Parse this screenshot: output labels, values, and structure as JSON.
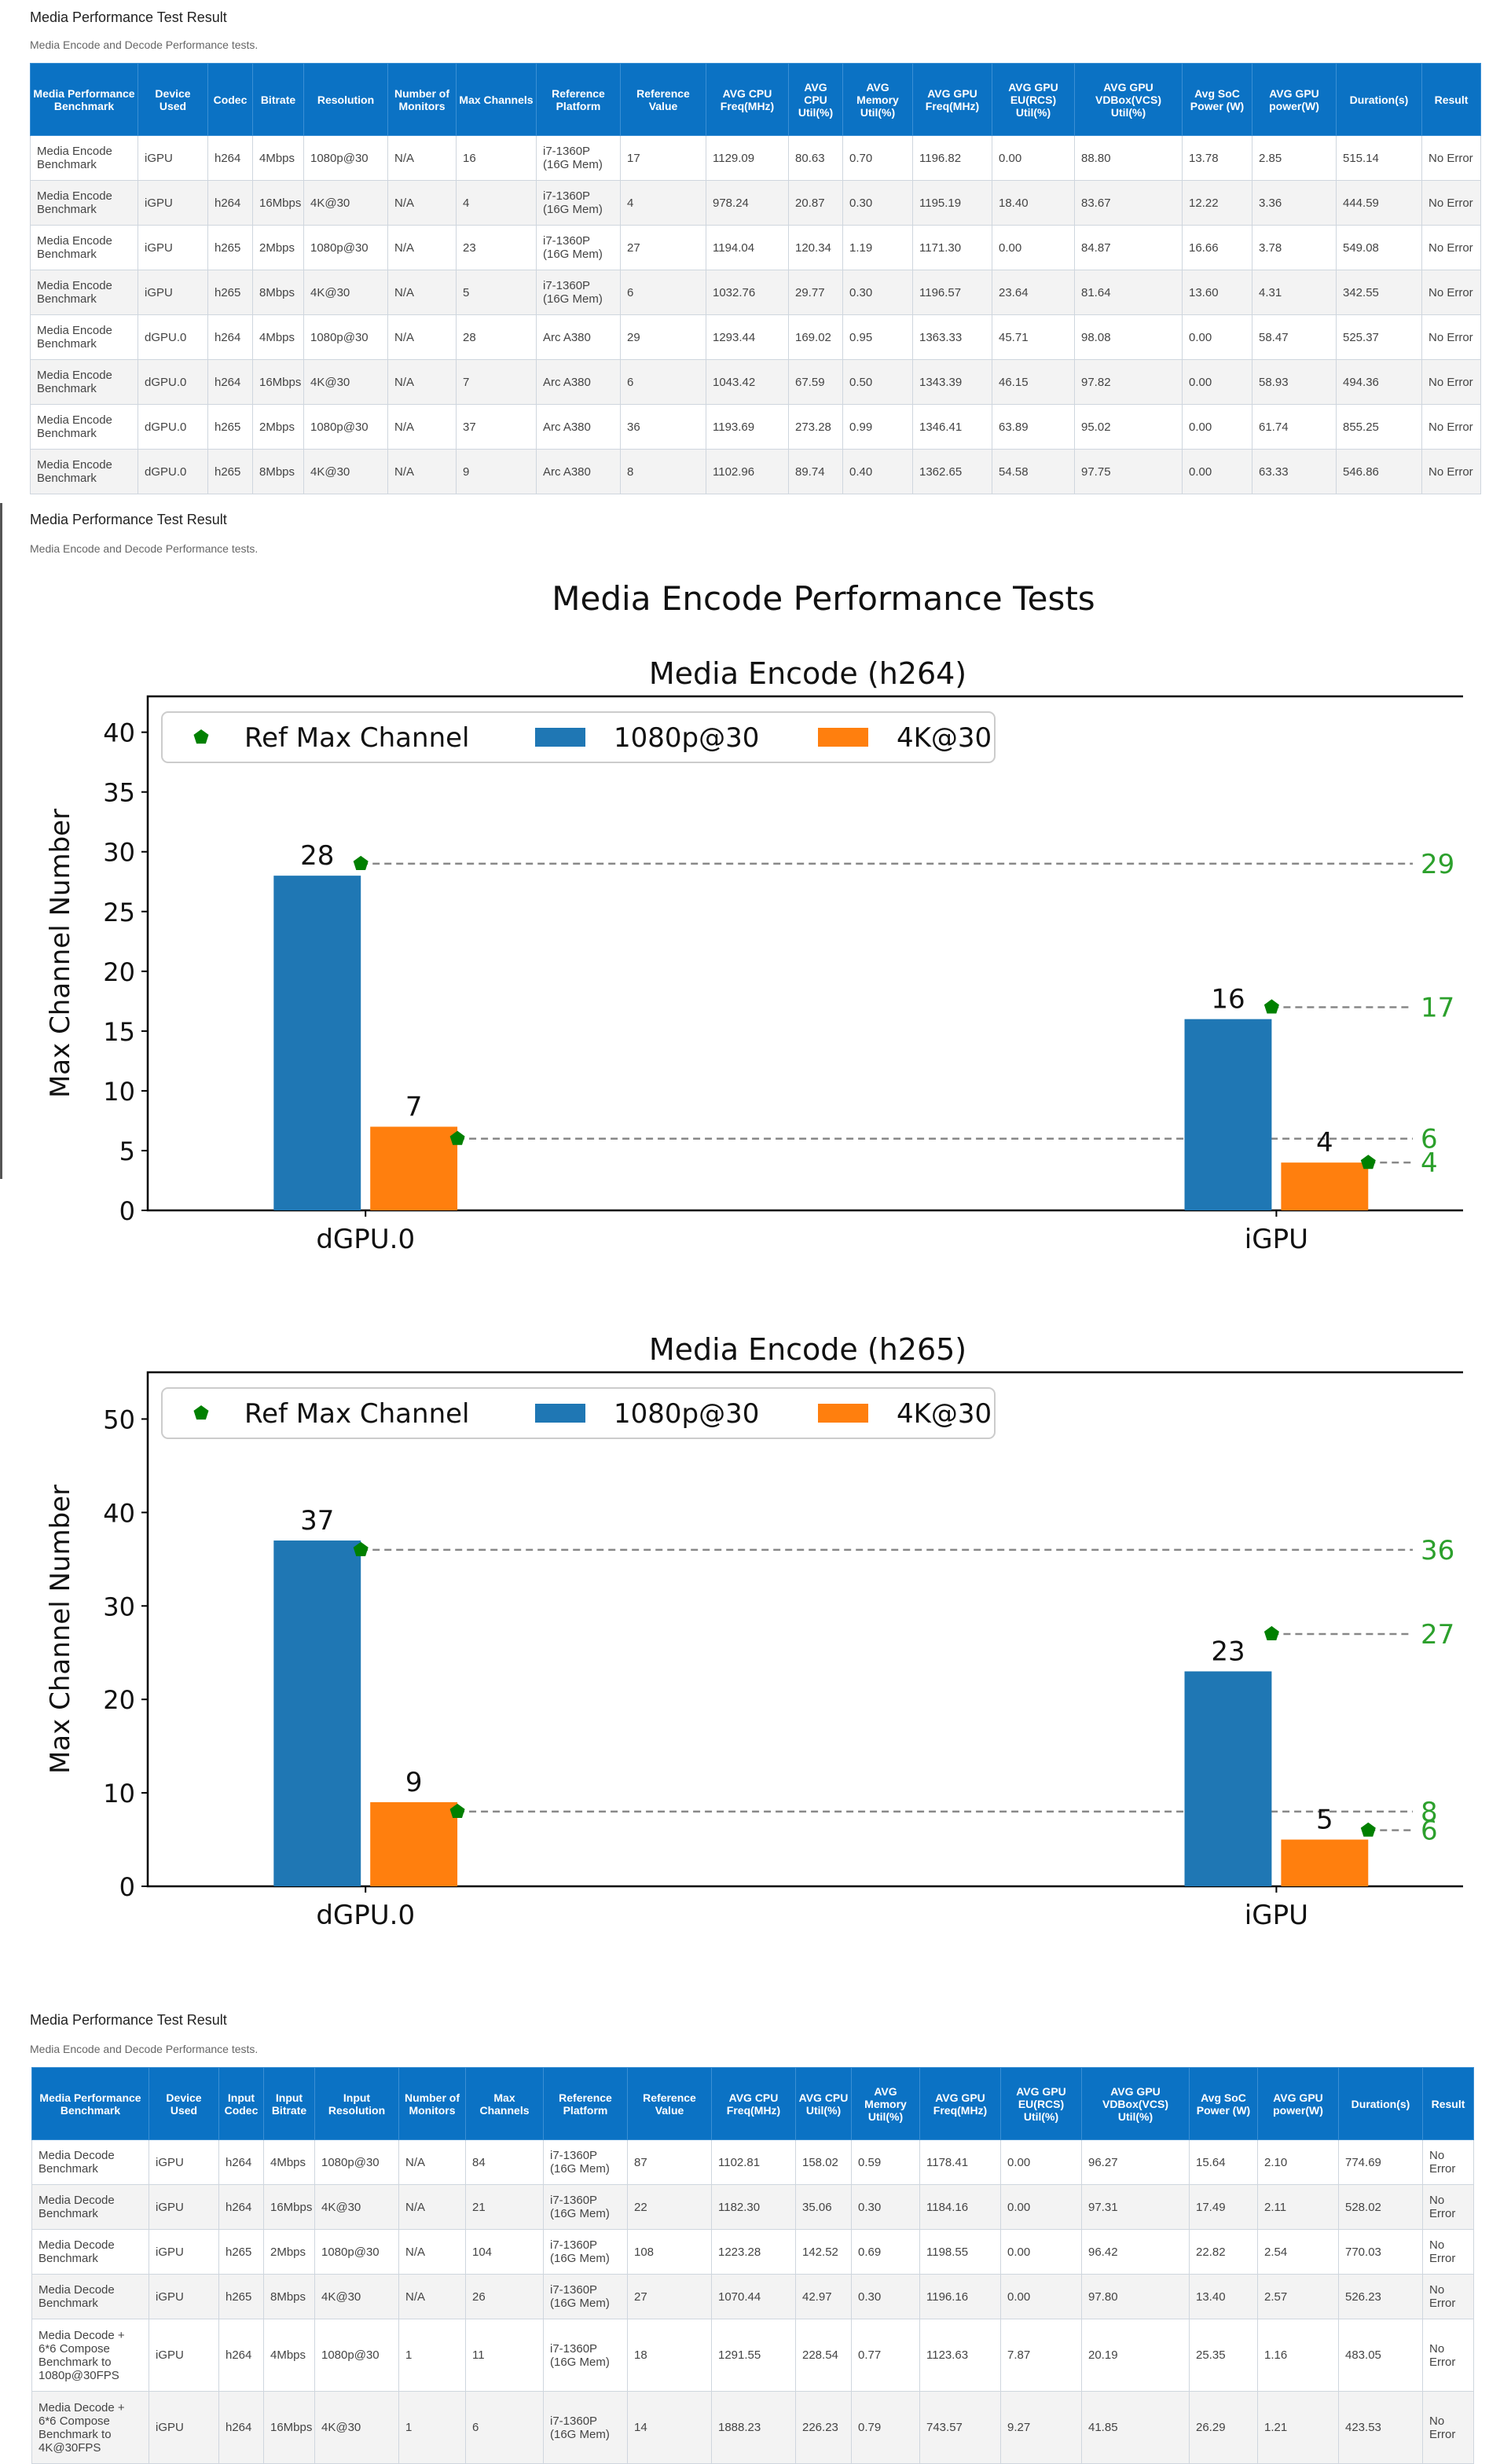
{
  "section1": {
    "title": "Media Performance Test Result",
    "description": "Media Encode and Decode Performance tests.",
    "columns": [
      "Media Performance Benchmark",
      "Device Used",
      "Codec",
      "Bitrate",
      "Resolution",
      "Number of Monitors",
      "Max Channels",
      "Reference Platform",
      "Reference Value",
      "AVG CPU Freq(MHz)",
      "AVG CPU Util(%)",
      "AVG Memory Util(%)",
      "AVG GPU Freq(MHz)",
      "AVG GPU EU(RCS) Util(%)",
      "AVG GPU VDBox(VCS) Util(%)",
      "Avg SoC Power (W)",
      "AVG GPU power(W)",
      "Duration(s)",
      "Result"
    ],
    "rows": [
      [
        "Media Encode Benchmark",
        "iGPU",
        "h264",
        "4Mbps",
        "1080p@30",
        "N/A",
        "16",
        "i7-1360P (16G Mem)",
        "17",
        "1129.09",
        "80.63",
        "0.70",
        "1196.82",
        "0.00",
        "88.80",
        "13.78",
        "2.85",
        "515.14",
        "No Error"
      ],
      [
        "Media Encode Benchmark",
        "iGPU",
        "h264",
        "16Mbps",
        "4K@30",
        "N/A",
        "4",
        "i7-1360P (16G Mem)",
        "4",
        "978.24",
        "20.87",
        "0.30",
        "1195.19",
        "18.40",
        "83.67",
        "12.22",
        "3.36",
        "444.59",
        "No Error"
      ],
      [
        "Media Encode Benchmark",
        "iGPU",
        "h265",
        "2Mbps",
        "1080p@30",
        "N/A",
        "23",
        "i7-1360P (16G Mem)",
        "27",
        "1194.04",
        "120.34",
        "1.19",
        "1171.30",
        "0.00",
        "84.87",
        "16.66",
        "3.78",
        "549.08",
        "No Error"
      ],
      [
        "Media Encode Benchmark",
        "iGPU",
        "h265",
        "8Mbps",
        "4K@30",
        "N/A",
        "5",
        "i7-1360P (16G Mem)",
        "6",
        "1032.76",
        "29.77",
        "0.30",
        "1196.57",
        "23.64",
        "81.64",
        "13.60",
        "4.31",
        "342.55",
        "No Error"
      ],
      [
        "Media Encode Benchmark",
        "dGPU.0",
        "h264",
        "4Mbps",
        "1080p@30",
        "N/A",
        "28",
        "Arc A380",
        "29",
        "1293.44",
        "169.02",
        "0.95",
        "1363.33",
        "45.71",
        "98.08",
        "0.00",
        "58.47",
        "525.37",
        "No Error"
      ],
      [
        "Media Encode Benchmark",
        "dGPU.0",
        "h264",
        "16Mbps",
        "4K@30",
        "N/A",
        "7",
        "Arc A380",
        "6",
        "1043.42",
        "67.59",
        "0.50",
        "1343.39",
        "46.15",
        "97.82",
        "0.00",
        "58.93",
        "494.36",
        "No Error"
      ],
      [
        "Media Encode Benchmark",
        "dGPU.0",
        "h265",
        "2Mbps",
        "1080p@30",
        "N/A",
        "37",
        "Arc A380",
        "36",
        "1193.69",
        "273.28",
        "0.99",
        "1346.41",
        "63.89",
        "95.02",
        "0.00",
        "61.74",
        "855.25",
        "No Error"
      ],
      [
        "Media Encode Benchmark",
        "dGPU.0",
        "h265",
        "8Mbps",
        "4K@30",
        "N/A",
        "9",
        "Arc A380",
        "8",
        "1102.96",
        "89.74",
        "0.40",
        "1362.65",
        "54.58",
        "97.75",
        "0.00",
        "63.33",
        "546.86",
        "No Error"
      ]
    ]
  },
  "section2": {
    "title": "Media Performance Test Result",
    "description": "Media Encode and Decode Performance tests."
  },
  "chart_data": [
    {
      "type": "bar",
      "title": "Media Encode Performance Tests",
      "subtitle": "Media Encode (h264)",
      "ylabel": "Max Channel Number",
      "categories": [
        "dGPU.0",
        "iGPU"
      ],
      "ylim": [
        0,
        43
      ],
      "yticks": [
        0,
        5,
        10,
        15,
        20,
        25,
        30,
        35,
        40
      ],
      "legend": [
        "Ref Max Channel",
        "1080p@30",
        "4K@30"
      ],
      "legend_position": "top-left",
      "series": [
        {
          "name": "1080p@30",
          "values": [
            28,
            16
          ],
          "color": "#1f77b4"
        },
        {
          "name": "4K@30",
          "values": [
            7,
            4
          ],
          "color": "#ff7f0e"
        }
      ],
      "reference": {
        "name": "Ref Max Channel",
        "values_1080p": [
          29,
          17
        ],
        "values_4k": [
          6,
          4
        ],
        "color": "#008000"
      }
    },
    {
      "type": "bar",
      "subtitle": "Media Encode (h265)",
      "ylabel": "Max Channel Number",
      "categories": [
        "dGPU.0",
        "iGPU"
      ],
      "ylim": [
        0,
        55
      ],
      "yticks": [
        0,
        10,
        20,
        30,
        40,
        50
      ],
      "legend": [
        "Ref Max Channel",
        "1080p@30",
        "4K@30"
      ],
      "legend_position": "top-left",
      "series": [
        {
          "name": "1080p@30",
          "values": [
            37,
            23
          ],
          "color": "#1f77b4"
        },
        {
          "name": "4K@30",
          "values": [
            9,
            5
          ],
          "color": "#ff7f0e"
        }
      ],
      "reference": {
        "name": "Ref Max Channel",
        "values_1080p": [
          36,
          27
        ],
        "values_4k": [
          8,
          6
        ],
        "color": "#008000"
      }
    }
  ],
  "section3": {
    "title": "Media Performance Test Result",
    "description": "Media Encode and Decode Performance tests.",
    "columns": [
      "Media Performance Benchmark",
      "Device Used",
      "Input Codec",
      "Input Bitrate",
      "Input Resolution",
      "Number of Monitors",
      "Max Channels",
      "Reference Platform",
      "Reference Value",
      "AVG CPU Freq(MHz)",
      "AVG CPU Util(%)",
      "AVG Memory Util(%)",
      "AVG GPU Freq(MHz)",
      "AVG GPU EU(RCS) Util(%)",
      "AVG GPU VDBox(VCS) Util(%)",
      "Avg SoC Power (W)",
      "AVG GPU power(W)",
      "Duration(s)",
      "Result"
    ],
    "rows": [
      [
        "Media Decode Benchmark",
        "iGPU",
        "h264",
        "4Mbps",
        "1080p@30",
        "N/A",
        "84",
        "i7-1360P (16G Mem)",
        "87",
        "1102.81",
        "158.02",
        "0.59",
        "1178.41",
        "0.00",
        "96.27",
        "15.64",
        "2.10",
        "774.69",
        "No Error"
      ],
      [
        "Media Decode Benchmark",
        "iGPU",
        "h264",
        "16Mbps",
        "4K@30",
        "N/A",
        "21",
        "i7-1360P (16G Mem)",
        "22",
        "1182.30",
        "35.06",
        "0.30",
        "1184.16",
        "0.00",
        "97.31",
        "17.49",
        "2.11",
        "528.02",
        "No Error"
      ],
      [
        "Media Decode Benchmark",
        "iGPU",
        "h265",
        "2Mbps",
        "1080p@30",
        "N/A",
        "104",
        "i7-1360P (16G Mem)",
        "108",
        "1223.28",
        "142.52",
        "0.69",
        "1198.55",
        "0.00",
        "96.42",
        "22.82",
        "2.54",
        "770.03",
        "No Error"
      ],
      [
        "Media Decode Benchmark",
        "iGPU",
        "h265",
        "8Mbps",
        "4K@30",
        "N/A",
        "26",
        "i7-1360P (16G Mem)",
        "27",
        "1070.44",
        "42.97",
        "0.30",
        "1196.16",
        "0.00",
        "97.80",
        "13.40",
        "2.57",
        "526.23",
        "No Error"
      ],
      [
        "Media Decode + 6*6 Compose Benchmark to 1080p@30FPS",
        "iGPU",
        "h264",
        "4Mbps",
        "1080p@30",
        "1",
        "11",
        "i7-1360P (16G Mem)",
        "18",
        "1291.55",
        "228.54",
        "0.77",
        "1123.63",
        "7.87",
        "20.19",
        "25.35",
        "1.16",
        "483.05",
        "No Error"
      ],
      [
        "Media Decode + 6*6 Compose Benchmark to 4K@30FPS",
        "iGPU",
        "h264",
        "16Mbps",
        "4K@30",
        "1",
        "6",
        "i7-1360P (16G Mem)",
        "14",
        "1888.23",
        "226.23",
        "0.79",
        "743.57",
        "9.27",
        "41.85",
        "26.29",
        "1.21",
        "423.53",
        "No Error"
      ]
    ]
  }
}
